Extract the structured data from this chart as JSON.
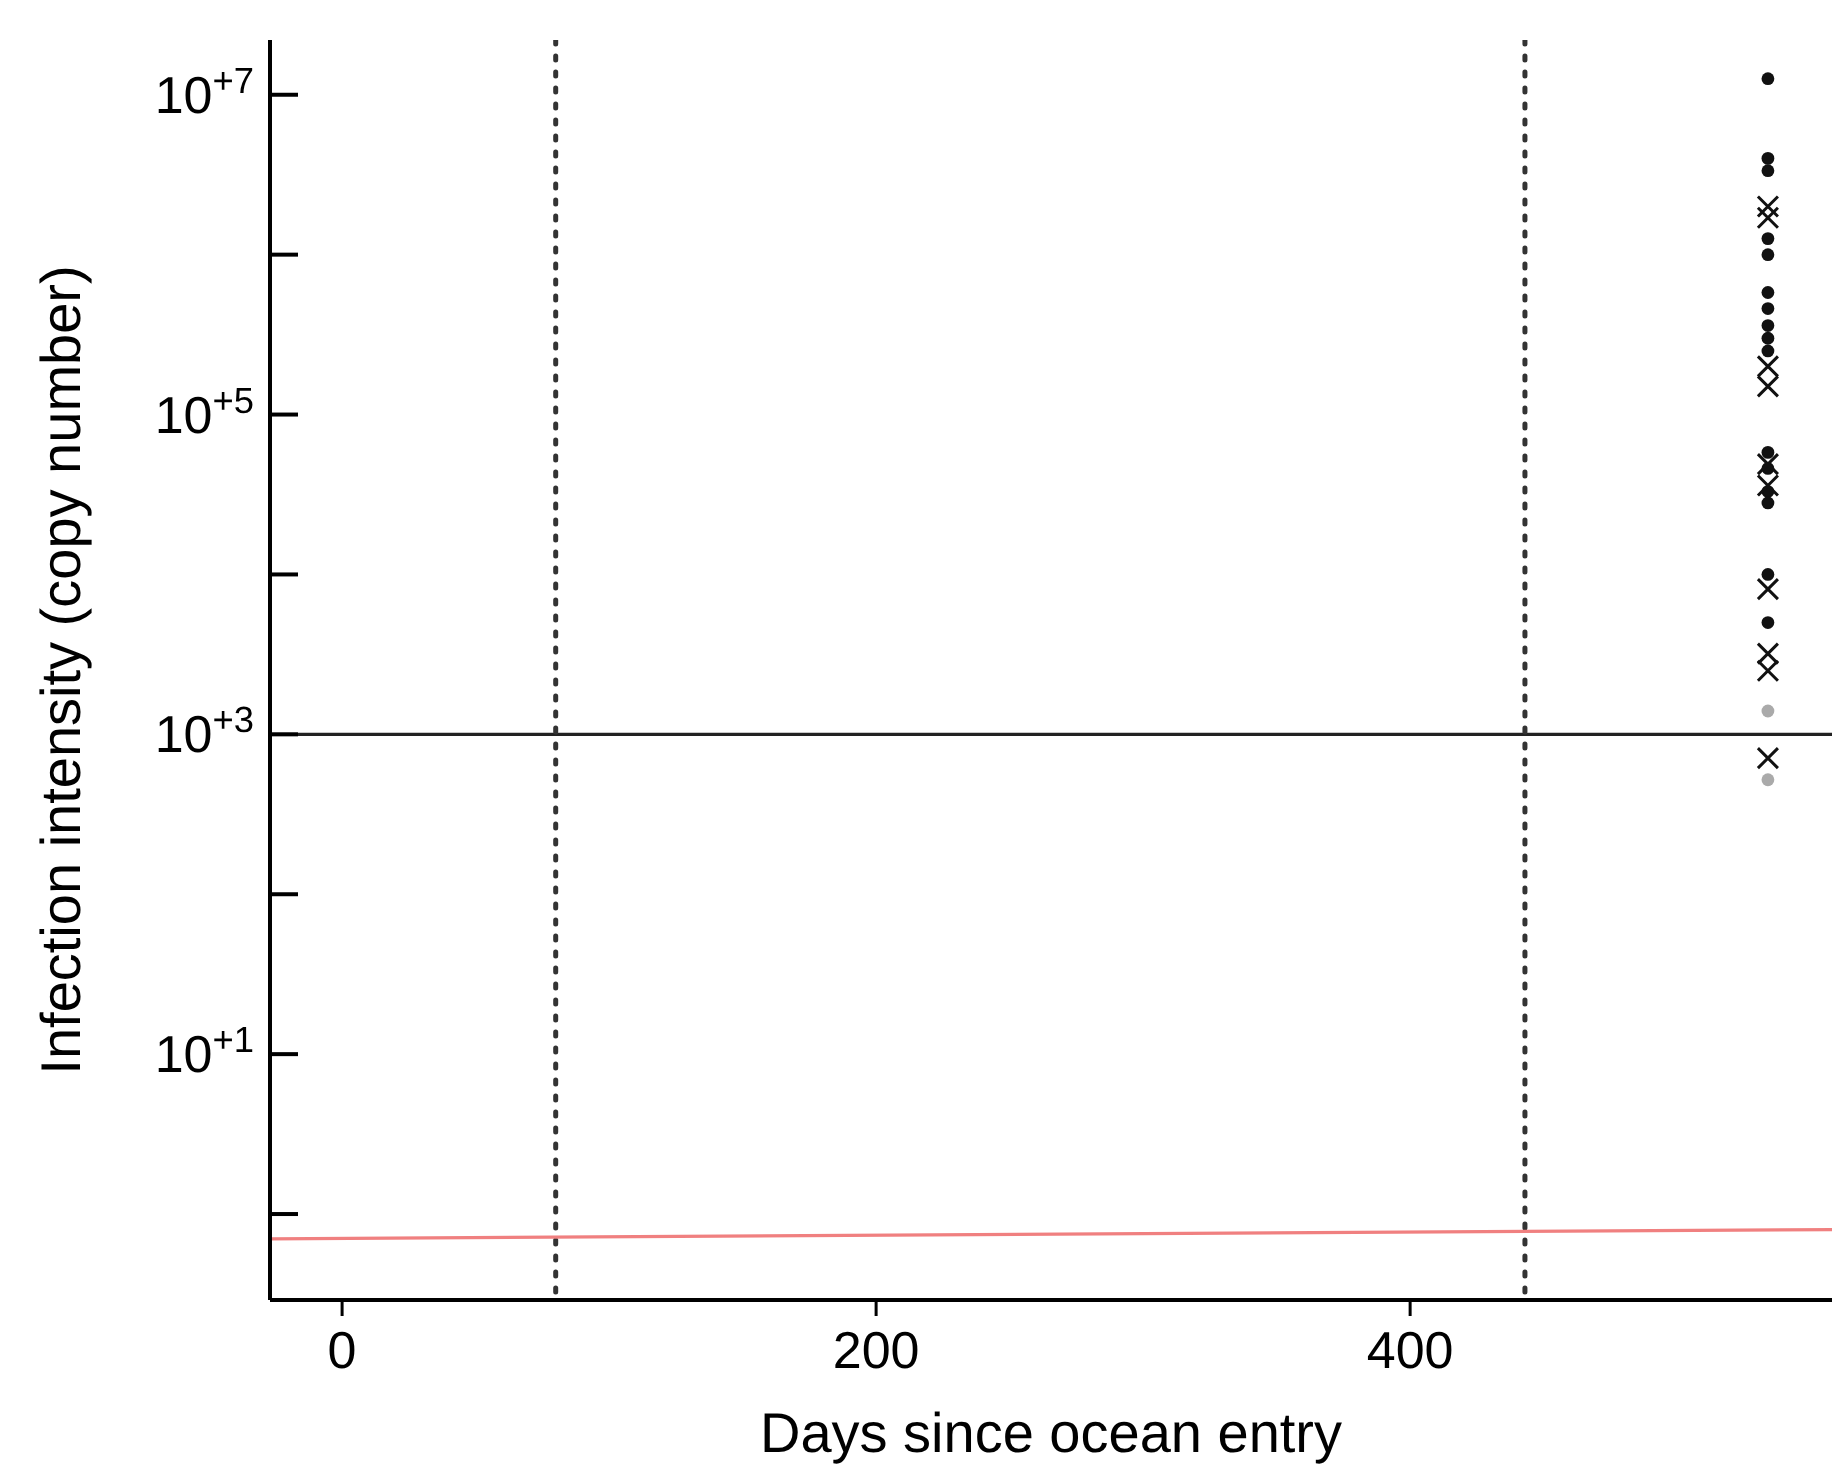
{
  "chart_data": {
    "type": "scatter",
    "xlabel": "Days since ocean entry",
    "ylabel": "Infection intensity (copy number)",
    "log": "y",
    "grid": false,
    "xlim": [
      -27,
      558
    ],
    "xticks": [
      0,
      200,
      400
    ],
    "ylim": [
      0.29,
      22000000
    ],
    "yticks": [
      {
        "value": 1,
        "label": null
      },
      {
        "value": 10,
        "label": "10$^{+1}$"
      },
      {
        "value": 100,
        "label": null
      },
      {
        "value": 1000,
        "label": "10$^{+3}$"
      },
      {
        "value": 10000,
        "label": null
      },
      {
        "value": 100000,
        "label": "10$^{+5}$"
      },
      {
        "value": 1000000,
        "label": null
      },
      {
        "value": 10000000,
        "label": "10$^{+7}$"
      }
    ],
    "ref_lines": [
      {
        "axis": "y",
        "value": 1000,
        "color": "#222222",
        "line_style": "solid"
      },
      {
        "axis": "x",
        "value": 80,
        "color": "#333333",
        "line_style": "dotted"
      },
      {
        "axis": "x",
        "value": 443,
        "color": "#333333",
        "line_style": "dotted"
      }
    ],
    "series": [
      {
        "type": "line",
        "color": "#f08080",
        "x": [
          -27,
          558
        ],
        "values": [
          0.7,
          0.8
        ],
        "line_style": "solid"
      },
      {
        "type": "scatter",
        "color": "#111111",
        "marker": "circle",
        "x": [
          534,
          534,
          534,
          534,
          534,
          534,
          534,
          534,
          534,
          534,
          534,
          534,
          534,
          534,
          534,
          534
        ],
        "values": [
          12600000,
          4000000,
          3350000,
          1260000,
          1000000,
          580000,
          460000,
          360000,
          300000,
          250000,
          58000,
          46000,
          33000,
          28000,
          10000,
          5000
        ]
      },
      {
        "type": "scatter",
        "color": "#111111",
        "marker": "cross",
        "x": [
          534,
          534,
          534,
          534,
          534,
          534,
          534,
          534,
          534,
          534
        ],
        "values": [
          2000000,
          1700000,
          200000,
          150000,
          49000,
          36000,
          8100,
          3200,
          2500,
          710
        ]
      },
      {
        "type": "scatter",
        "color": "#aaaaaa",
        "marker": "circle",
        "x": [
          534,
          534
        ],
        "values": [
          1400,
          520
        ]
      }
    ]
  }
}
